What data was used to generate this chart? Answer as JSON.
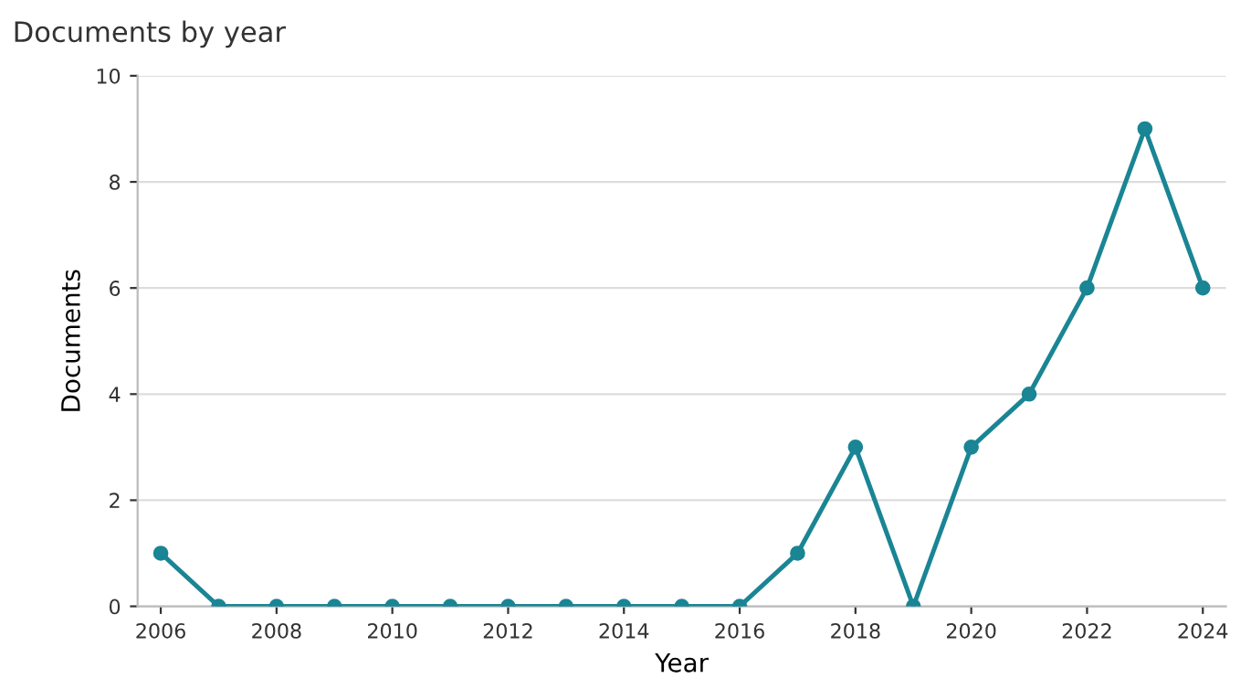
{
  "chart_data": {
    "type": "line",
    "title": "Documents by year",
    "xlabel": "Year",
    "ylabel": "Documents",
    "x": [
      2006,
      2007,
      2008,
      2009,
      2010,
      2011,
      2012,
      2013,
      2014,
      2015,
      2016,
      2017,
      2018,
      2019,
      2020,
      2021,
      2022,
      2023,
      2024
    ],
    "series": [
      {
        "color": "#1a8594",
        "values": [
          1,
          0,
          0,
          0,
          0,
          0,
          0,
          0,
          0,
          0,
          0,
          1,
          3,
          0,
          3,
          4,
          6,
          9,
          6
        ]
      }
    ],
    "xlim": [
      2005.6,
      2024.4
    ],
    "ylim": [
      0,
      10
    ],
    "xticks": [
      2006,
      2008,
      2010,
      2012,
      2014,
      2016,
      2018,
      2020,
      2022,
      2024
    ],
    "yticks": [
      0,
      2,
      4,
      6,
      8,
      10
    ],
    "grid": "y",
    "marker": "circle",
    "line_style": "solid"
  }
}
